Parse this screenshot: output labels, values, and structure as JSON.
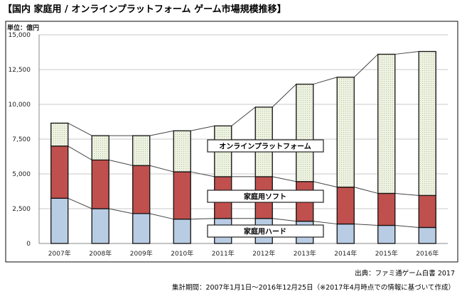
{
  "title": "【国内 家庭用 / オンラインプラットフォーム ゲーム市場規模推移】",
  "source": "出典：ファミ通ゲーム白書 2017",
  "period": "集計期間：2007年1月1日〜2016年12月25日（※2017年4月時点での情報に基づいて作成）",
  "chart_data": {
    "type": "bar",
    "stacked": true,
    "unit_label": "単位：億円",
    "categories": [
      "2007年",
      "2008年",
      "2009年",
      "2010年",
      "2011年",
      "2012年",
      "2013年",
      "2014年",
      "2015年",
      "2016年"
    ],
    "ylim": [
      0,
      15000
    ],
    "yticks": [
      0,
      2500,
      5000,
      7500,
      10000,
      12500,
      15000
    ],
    "ytick_labels": [
      "0",
      "2,500",
      "5,000",
      "7,500",
      "10,000",
      "12,500",
      "15,000"
    ],
    "grid": true,
    "series": [
      {
        "name": "家庭用ハード",
        "color": "#b8cce4",
        "values": [
          3250,
          2500,
          2150,
          1750,
          1800,
          1800,
          1600,
          1400,
          1300,
          1150
        ]
      },
      {
        "name": "家庭用ソフト",
        "color": "#c0504d",
        "values": [
          3750,
          3500,
          3450,
          3400,
          3000,
          3000,
          2850,
          2650,
          2300,
          2300
        ]
      },
      {
        "name": "オンラインプラットフォーム",
        "color": "#ebf1de",
        "values": [
          1650,
          1750,
          2150,
          2950,
          3650,
          5000,
          7000,
          7900,
          10000,
          10350
        ]
      }
    ]
  }
}
